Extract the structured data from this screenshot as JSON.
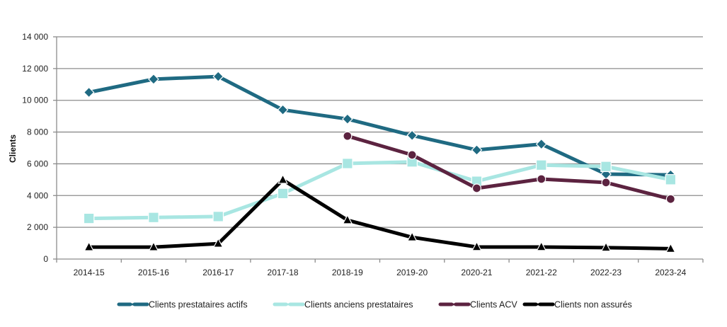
{
  "chart_data": {
    "type": "line",
    "title": "",
    "xlabel": "",
    "ylabel": "Clients",
    "ylim": [
      0,
      14000
    ],
    "yticks": [
      0,
      2000,
      4000,
      6000,
      8000,
      10000,
      12000,
      14000
    ],
    "ytick_labels": [
      "0",
      "2 000",
      "4 000",
      "6 000",
      "8 000",
      "10 000",
      "12 000",
      "14 000"
    ],
    "grid": true,
    "legend_position": "bottom",
    "categories": [
      "2014-15",
      "2015-16",
      "2016-17",
      "2017-18",
      "2018-19",
      "2019-20",
      "2020-21",
      "2021-22",
      "2022-23",
      "2023-24"
    ],
    "series": [
      {
        "name": "Clients prestataires actifs",
        "color": "#1F6A82",
        "marker": "diamond",
        "values": [
          10500,
          11330,
          11500,
          9400,
          8820,
          7790,
          6870,
          7240,
          5350,
          5300
        ]
      },
      {
        "name": "Clients anciens prestataires",
        "color": "#A8E6E2",
        "marker": "square",
        "values": [
          2560,
          2620,
          2680,
          4130,
          6020,
          6120,
          4900,
          5920,
          5830,
          5000
        ]
      },
      {
        "name": "Clients ACV",
        "color": "#5C2340",
        "marker": "circle",
        "values": [
          null,
          null,
          null,
          null,
          7750,
          6560,
          4460,
          5040,
          4820,
          3780
        ]
      },
      {
        "name": "Clients non assurés",
        "color": "#000000",
        "marker": "triangle",
        "values": [
          750,
          750,
          970,
          4990,
          2450,
          1370,
          760,
          760,
          720,
          650
        ]
      }
    ]
  }
}
